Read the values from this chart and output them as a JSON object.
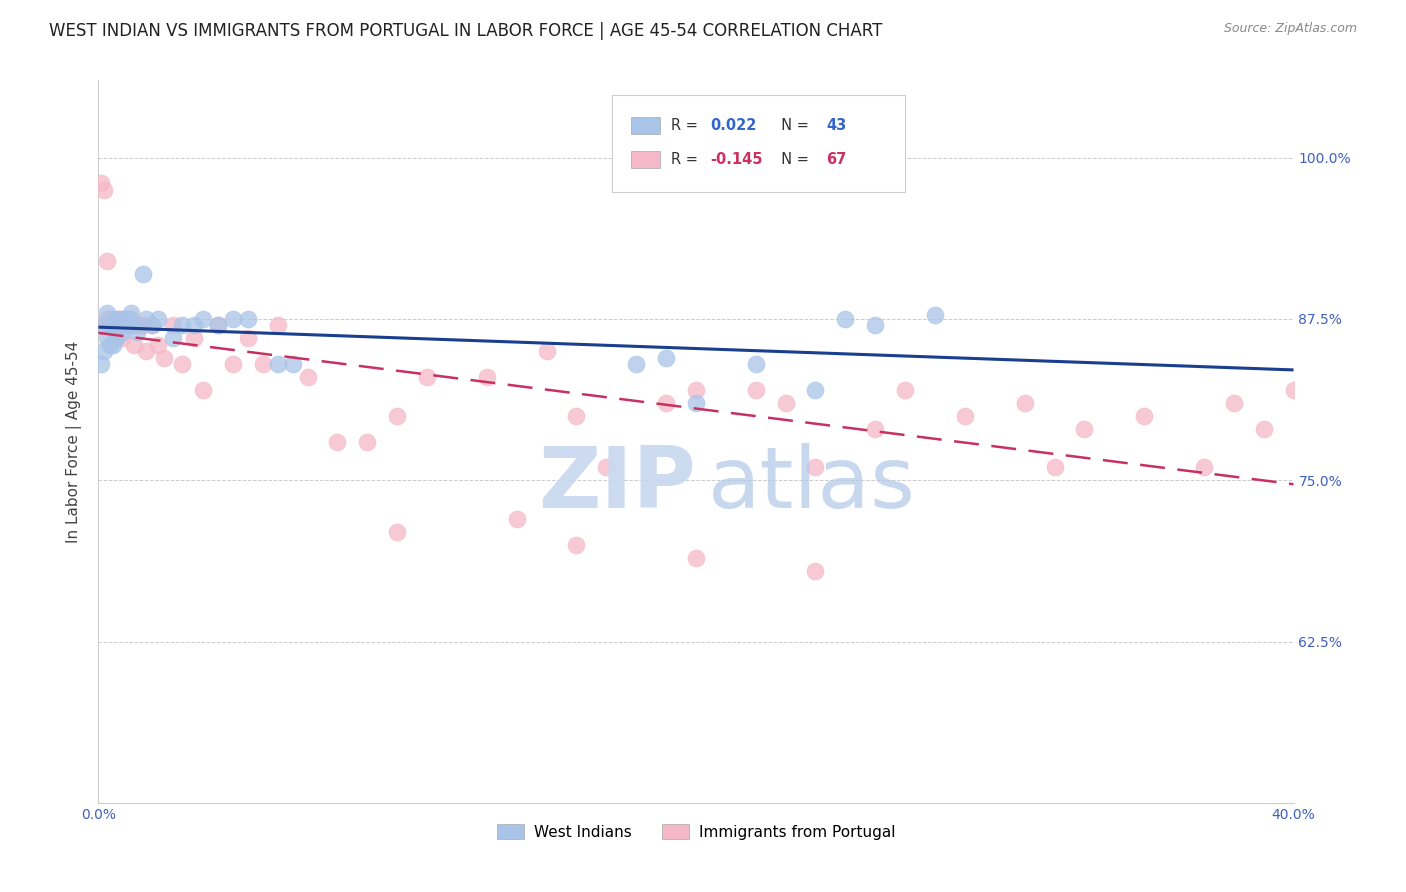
{
  "title": "WEST INDIAN VS IMMIGRANTS FROM PORTUGAL IN LABOR FORCE | AGE 45-54 CORRELATION CHART",
  "source_text": "Source: ZipAtlas.com",
  "ylabel": "In Labor Force | Age 45-54",
  "ytick_labels": [
    "62.5%",
    "75.0%",
    "87.5%",
    "100.0%"
  ],
  "ytick_values": [
    0.625,
    0.75,
    0.875,
    1.0
  ],
  "xlim": [
    0.0,
    0.4
  ],
  "ylim": [
    0.5,
    1.06
  ],
  "blue_color": "#a8c4e8",
  "pink_color": "#f5b8c8",
  "blue_line_color": "#1a3f8f",
  "pink_line_color": "#c83060",
  "watermark_zip_color": "#c8d8f0",
  "watermark_atlas_color": "#b0c8e8",
  "title_fontsize": 12,
  "axis_label_fontsize": 11,
  "tick_fontsize": 10,
  "background_color": "#ffffff",
  "west_indians_x": [
    0.001,
    0.002,
    0.002,
    0.003,
    0.003,
    0.004,
    0.004,
    0.005,
    0.005,
    0.006,
    0.006,
    0.007,
    0.007,
    0.008,
    0.008,
    0.009,
    0.009,
    0.01,
    0.01,
    0.011,
    0.012,
    0.013,
    0.015,
    0.016,
    0.018,
    0.02,
    0.025,
    0.028,
    0.032,
    0.035,
    0.04,
    0.045,
    0.05,
    0.06,
    0.065,
    0.18,
    0.19,
    0.2,
    0.22,
    0.24,
    0.25,
    0.26,
    0.28
  ],
  "west_indians_y": [
    0.84,
    0.85,
    0.87,
    0.86,
    0.88,
    0.855,
    0.87,
    0.87,
    0.855,
    0.875,
    0.86,
    0.875,
    0.87,
    0.87,
    0.865,
    0.875,
    0.87,
    0.875,
    0.87,
    0.88,
    0.87,
    0.865,
    0.91,
    0.875,
    0.87,
    0.875,
    0.86,
    0.87,
    0.87,
    0.875,
    0.87,
    0.875,
    0.875,
    0.84,
    0.84,
    0.84,
    0.845,
    0.81,
    0.84,
    0.82,
    0.875,
    0.87,
    0.878
  ],
  "portugal_x": [
    0.001,
    0.002,
    0.002,
    0.003,
    0.003,
    0.004,
    0.004,
    0.005,
    0.005,
    0.006,
    0.006,
    0.007,
    0.007,
    0.008,
    0.008,
    0.009,
    0.009,
    0.01,
    0.01,
    0.011,
    0.012,
    0.013,
    0.014,
    0.015,
    0.016,
    0.018,
    0.02,
    0.022,
    0.025,
    0.028,
    0.032,
    0.035,
    0.04,
    0.045,
    0.05,
    0.055,
    0.06,
    0.07,
    0.08,
    0.09,
    0.1,
    0.11,
    0.13,
    0.15,
    0.16,
    0.17,
    0.19,
    0.2,
    0.22,
    0.23,
    0.24,
    0.26,
    0.27,
    0.29,
    0.31,
    0.33,
    0.35,
    0.38,
    0.39,
    0.4,
    0.1,
    0.14,
    0.16,
    0.2,
    0.24,
    0.32,
    0.37
  ],
  "portugal_y": [
    0.98,
    0.975,
    0.87,
    0.875,
    0.92,
    0.875,
    0.87,
    0.875,
    0.87,
    0.875,
    0.86,
    0.875,
    0.87,
    0.875,
    0.86,
    0.875,
    0.87,
    0.87,
    0.87,
    0.875,
    0.855,
    0.87,
    0.87,
    0.87,
    0.85,
    0.87,
    0.855,
    0.845,
    0.87,
    0.84,
    0.86,
    0.82,
    0.87,
    0.84,
    0.86,
    0.84,
    0.87,
    0.83,
    0.78,
    0.78,
    0.8,
    0.83,
    0.83,
    0.85,
    0.8,
    0.76,
    0.81,
    0.82,
    0.82,
    0.81,
    0.76,
    0.79,
    0.82,
    0.8,
    0.81,
    0.79,
    0.8,
    0.81,
    0.79,
    0.82,
    0.71,
    0.72,
    0.7,
    0.69,
    0.68,
    0.76,
    0.76
  ]
}
